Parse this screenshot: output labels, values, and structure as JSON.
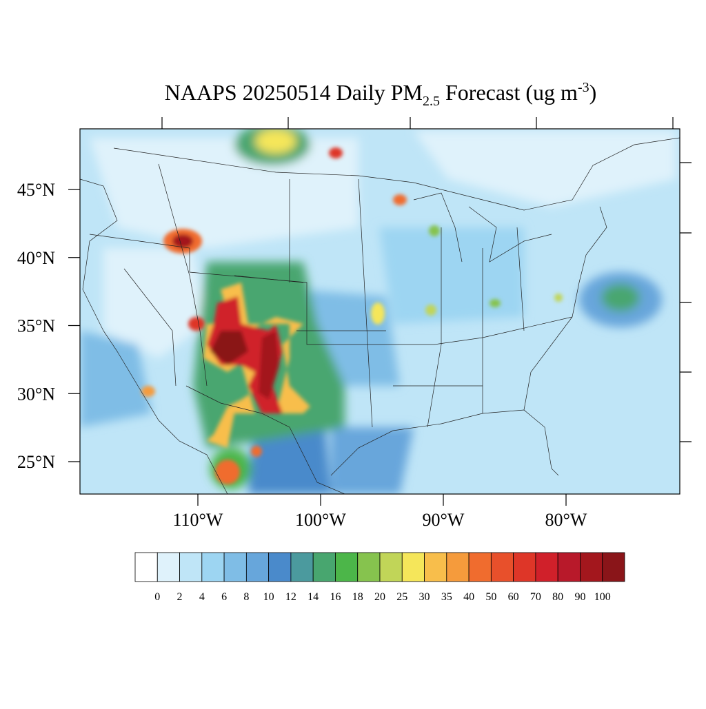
{
  "title": {
    "main": "NAAPS 20250514 Daily PM",
    "sub": "2.5",
    "after": " Forecast (ug m",
    "sup": "-3",
    "end": ")"
  },
  "map": {
    "lat_ticks": [
      {
        "value": 25,
        "label": "25°N"
      },
      {
        "value": 30,
        "label": "30°N"
      },
      {
        "value": 35,
        "label": "35°N"
      },
      {
        "value": 40,
        "label": "40°N"
      },
      {
        "value": 45,
        "label": "45°N"
      }
    ],
    "lon_ticks": [
      {
        "value": -110,
        "label": "110°W"
      },
      {
        "value": -100,
        "label": "100°W"
      },
      {
        "value": -90,
        "label": "90°W"
      },
      {
        "value": -80,
        "label": "80°W"
      }
    ]
  },
  "colorbar": {
    "levels": [
      0,
      2,
      4,
      6,
      8,
      10,
      12,
      14,
      16,
      18,
      20,
      25,
      30,
      35,
      40,
      50,
      60,
      70,
      80,
      90,
      100
    ],
    "colors": [
      "#ffffff",
      "#dff2fb",
      "#bfe5f7",
      "#9dd5f2",
      "#7fbde6",
      "#67a6db",
      "#4a8acb",
      "#4b9a9e",
      "#48a66f",
      "#4cb649",
      "#86c34e",
      "#c1d558",
      "#f5e65a",
      "#f8be4b",
      "#f59b3c",
      "#f06c2e",
      "#e8502b",
      "#de3628",
      "#d0202a",
      "#b8192a",
      "#a3171d",
      "#8a1519"
    ]
  }
}
